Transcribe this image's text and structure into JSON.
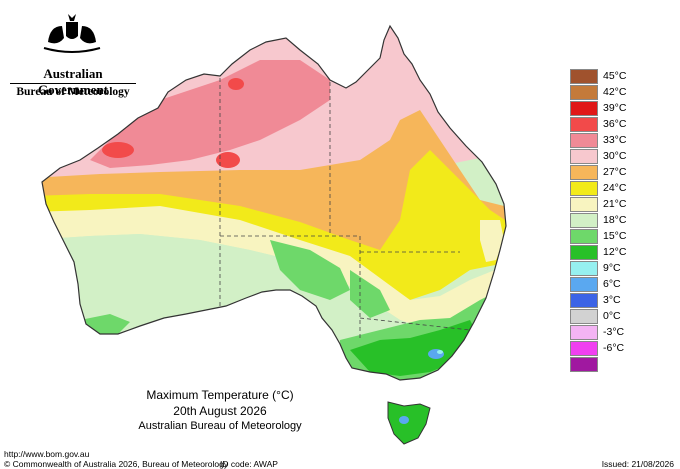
{
  "header": {
    "government": "Australian Government",
    "bureau": "Bureau of Meteorology"
  },
  "map": {
    "title_line1": "Maximum Temperature (°C)",
    "title_line2": "20th August 2026",
    "title_line3": "Australian Bureau of Meteorology",
    "region": "Australia",
    "variable": "Maximum Temperature",
    "unit": "°C"
  },
  "legend": {
    "items": [
      {
        "label": "45°C",
        "color": "#a0522d"
      },
      {
        "label": "42°C",
        "color": "#c47a3a"
      },
      {
        "label": "39°C",
        "color": "#e01818"
      },
      {
        "label": "36°C",
        "color": "#f24a4a"
      },
      {
        "label": "33°C",
        "color": "#f08a96"
      },
      {
        "label": "30°C",
        "color": "#f7c8ce"
      },
      {
        "label": "27°C",
        "color": "#f6b65a"
      },
      {
        "label": "24°C",
        "color": "#f2ea1a"
      },
      {
        "label": "21°C",
        "color": "#f8f4c0"
      },
      {
        "label": "18°C",
        "color": "#d2f0c6"
      },
      {
        "label": "15°C",
        "color": "#6ed86a"
      },
      {
        "label": "12°C",
        "color": "#28c028"
      },
      {
        "label": "9°C",
        "color": "#96f0f0"
      },
      {
        "label": "6°C",
        "color": "#5aa8f0"
      },
      {
        "label": "3°C",
        "color": "#3c64e6"
      },
      {
        "label": "0°C",
        "color": "#d2d2d2"
      },
      {
        "label": "-3°C",
        "color": "#f4b4f4"
      },
      {
        "label": "-6°C",
        "color": "#f040f0"
      },
      {
        "label": "",
        "color": "#a018a0"
      }
    ]
  },
  "footer": {
    "url": "http://www.bom.gov.au",
    "copyright": "© Commonwealth of Australia 2026, Bureau of Meteorology",
    "id_code": "ID code: AWAP",
    "issued": "Issued: 21/08/2026"
  }
}
